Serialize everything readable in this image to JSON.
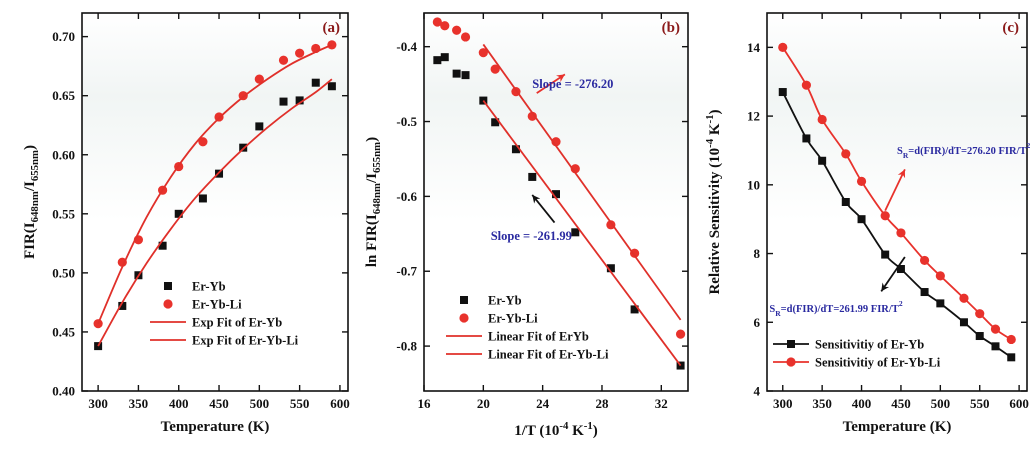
{
  "colors": {
    "black_series": "#111111",
    "red_series": "#e8322c",
    "fit_line": "#e0302a",
    "annotation": "#2a2aa0",
    "panel_tag": "#8b1a1a",
    "arrow_red": "#e8322c",
    "arrow_black": "#111111"
  },
  "chart_data": [
    {
      "type": "scatter",
      "panel_label": "(a)",
      "xlabel": "Temperature (K)",
      "ylabel_parts": [
        "FIR(I",
        "648nm",
        "/I",
        "655nm",
        ")"
      ],
      "xlim": [
        280,
        610
      ],
      "ylim": [
        0.4,
        0.72
      ],
      "xticks": [
        300,
        350,
        400,
        450,
        500,
        550,
        600
      ],
      "yticks": [
        0.4,
        0.45,
        0.5,
        0.55,
        0.6,
        0.65,
        0.7
      ],
      "ytick_decimals": 2,
      "series": [
        {
          "name": "Er-Yb",
          "marker": "square",
          "color": "#111111",
          "x": [
            300,
            330,
            350,
            380,
            400,
            430,
            450,
            480,
            500,
            530,
            550,
            570,
            590
          ],
          "y": [
            0.438,
            0.472,
            0.498,
            0.523,
            0.55,
            0.563,
            0.584,
            0.606,
            0.624,
            0.645,
            0.646,
            0.661,
            0.658
          ]
        },
        {
          "name": "Er-Yb-Li",
          "marker": "circle",
          "color": "#e8322c",
          "x": [
            300,
            330,
            350,
            380,
            400,
            430,
            450,
            480,
            500,
            530,
            550,
            570,
            590
          ],
          "y": [
            0.457,
            0.509,
            0.528,
            0.57,
            0.59,
            0.611,
            0.632,
            0.65,
            0.664,
            0.68,
            0.686,
            0.69,
            0.693
          ]
        },
        {
          "name": "Exp Fit of Er-Yb",
          "marker": "line",
          "color": "#e0302a",
          "x": [
            300,
            330,
            360,
            390,
            420,
            450,
            480,
            510,
            540,
            570,
            590
          ],
          "y": [
            0.438,
            0.475,
            0.508,
            0.537,
            0.563,
            0.585,
            0.605,
            0.623,
            0.639,
            0.653,
            0.664
          ]
        },
        {
          "name": "Exp Fit of Er-Yb-Li",
          "marker": "line",
          "color": "#e0302a",
          "x": [
            300,
            330,
            360,
            390,
            420,
            450,
            480,
            510,
            540,
            570,
            590
          ],
          "y": [
            0.457,
            0.505,
            0.547,
            0.581,
            0.609,
            0.631,
            0.649,
            0.664,
            0.677,
            0.687,
            0.693
          ]
        }
      ],
      "legend_placement": "bottom-right",
      "annotations": []
    },
    {
      "type": "scatter",
      "panel_label": "(b)",
      "xlabel_parts": [
        "1/T (10",
        "-4",
        " K",
        "-1",
        ")"
      ],
      "ylabel_parts": [
        "ln FIR(I",
        "648nm",
        "/I",
        "655nm",
        ")"
      ],
      "xlim": [
        16,
        33.8
      ],
      "ylim": [
        -0.86,
        -0.355
      ],
      "xticks": [
        16,
        20,
        24,
        28,
        32
      ],
      "yticks": [
        -0.4,
        -0.5,
        -0.6,
        -0.7,
        -0.8
      ],
      "ytick_decimals": 1,
      "series": [
        {
          "name": "Er-Yb",
          "marker": "square",
          "color": "#111111",
          "x": [
            16.9,
            17.4,
            18.2,
            18.8,
            20.0,
            20.8,
            22.2,
            23.3,
            24.9,
            26.2,
            28.6,
            30.2,
            33.3
          ],
          "y": [
            -0.418,
            -0.414,
            -0.436,
            -0.438,
            -0.472,
            -0.501,
            -0.537,
            -0.574,
            -0.597,
            -0.648,
            -0.696,
            -0.751,
            -0.826
          ]
        },
        {
          "name": "Er-Yb-Li",
          "marker": "circle",
          "color": "#e8322c",
          "x": [
            16.9,
            17.4,
            18.2,
            18.8,
            20.0,
            20.8,
            22.2,
            23.3,
            24.9,
            26.2,
            28.6,
            30.2,
            33.3
          ],
          "y": [
            -0.367,
            -0.372,
            -0.378,
            -0.387,
            -0.408,
            -0.43,
            -0.46,
            -0.493,
            -0.527,
            -0.563,
            -0.638,
            -0.676,
            -0.784
          ]
        },
        {
          "name": "Linear Fit of ErYb",
          "marker": "line",
          "color": "#e0302a",
          "x": [
            20.0,
            33.3
          ],
          "y": [
            -0.472,
            -0.826
          ]
        },
        {
          "name": "Linear Fit of Er-Yb-Li",
          "marker": "line",
          "color": "#e0302a",
          "x": [
            20.0,
            33.3
          ],
          "y": [
            -0.397,
            -0.765
          ]
        }
      ],
      "legend_placement": "bottom-left",
      "annotations": [
        {
          "text": "Slope = -276.20",
          "x": 23.3,
          "y": -0.455,
          "arrow_from": [
            23.6,
            -0.462
          ],
          "arrow_to": [
            25.5,
            -0.437
          ],
          "arrow_color": "#e8322c"
        },
        {
          "text": "Slope = -261.99",
          "x": 20.5,
          "y": -0.658,
          "arrow_from": [
            24.8,
            -0.635
          ],
          "arrow_to": [
            23.3,
            -0.598
          ],
          "arrow_color": "#111111"
        }
      ]
    },
    {
      "type": "line",
      "panel_label": "(c)",
      "xlabel": "Temperature (K)",
      "ylabel_parts": [
        "Relative Sensitivity (10",
        "-4",
        " K",
        "-1",
        ")"
      ],
      "xlim": [
        280,
        610
      ],
      "ylim": [
        4,
        15
      ],
      "xticks": [
        300,
        350,
        400,
        450,
        500,
        550,
        600
      ],
      "yticks": [
        4,
        6,
        8,
        10,
        12,
        14
      ],
      "ytick_decimals": 0,
      "series": [
        {
          "name": "Sensitivitiy of Er-Yb",
          "marker": "square-line",
          "color": "#111111",
          "x": [
            300,
            330,
            350,
            380,
            400,
            430,
            450,
            480,
            500,
            530,
            550,
            570,
            590
          ],
          "y": [
            12.7,
            11.35,
            10.7,
            9.5,
            9.0,
            7.97,
            7.55,
            6.88,
            6.55,
            6.0,
            5.6,
            5.3,
            4.98
          ]
        },
        {
          "name": "Sensitivitiy of Er-Yb-Li",
          "marker": "circle-line",
          "color": "#e8322c",
          "x": [
            300,
            330,
            350,
            380,
            400,
            430,
            450,
            480,
            500,
            530,
            550,
            570,
            590
          ],
          "y": [
            14.0,
            12.9,
            11.9,
            10.9,
            10.1,
            9.1,
            8.6,
            7.8,
            7.35,
            6.7,
            6.25,
            5.8,
            5.5
          ]
        }
      ],
      "legend_placement": "bottom-left",
      "annotations": [
        {
          "parts": [
            "S",
            "R",
            "=d(FIR)/dT=276.20 FIR/T",
            "2",
            ""
          ],
          "x": 445,
          "y": 10.9,
          "arrow_from": [
            430,
            9.25
          ],
          "arrow_to": [
            455,
            10.45
          ],
          "arrow_color": "#e8322c"
        },
        {
          "parts": [
            "S",
            "R",
            "=d(FIR)/dT=261.99 FIR/T",
            "2",
            ""
          ],
          "x": 283,
          "y": 6.3,
          "arrow_from": [
            455,
            7.9
          ],
          "arrow_to": [
            425,
            6.9
          ],
          "arrow_color": "#111111"
        }
      ]
    }
  ]
}
